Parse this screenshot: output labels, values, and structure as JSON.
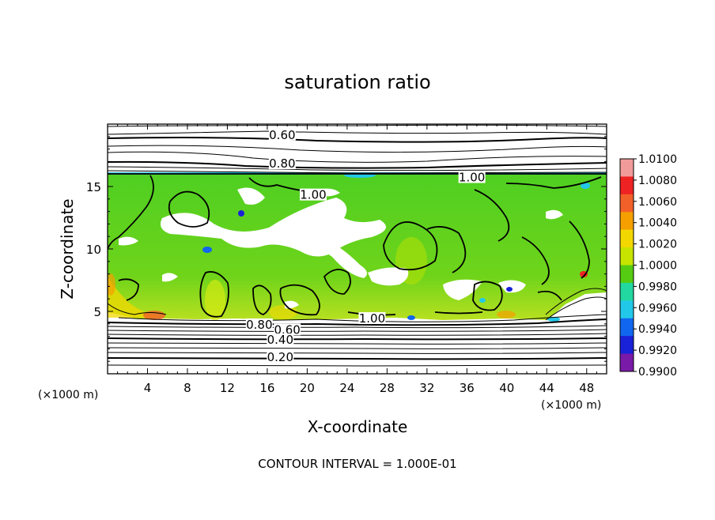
{
  "chart_data": {
    "type": "heatmap",
    "title": "saturation ratio",
    "xlabel": "X-coordinate",
    "ylabel": "Z-coordinate",
    "x_unit": "(×1000 m)",
    "z_unit": "(×1000 m)",
    "xlim": [
      0,
      50
    ],
    "ylim": [
      0,
      20
    ],
    "x_ticks": [
      4,
      8,
      12,
      16,
      20,
      24,
      28,
      32,
      36,
      40,
      44,
      48
    ],
    "y_ticks": [
      5,
      10,
      15
    ],
    "colorbar": {
      "min": 0.99,
      "max": 1.01,
      "tick_labels": [
        "1.0100",
        "1.0080",
        "1.0060",
        "1.0040",
        "1.0020",
        "1.0000",
        "0.9980",
        "0.9960",
        "0.9940",
        "0.9920",
        "0.9900"
      ],
      "colors": [
        "#f29b9b",
        "#ee2222",
        "#f2602a",
        "#f5a000",
        "#f2d800",
        "#c6e400",
        "#55cc11",
        "#22d8a0",
        "#22c8e8",
        "#1166ee",
        "#1a22d8",
        "#7a1aa8"
      ]
    },
    "contour_labels": [
      {
        "text": "0.60",
        "x": 17.5,
        "z": 19.0
      },
      {
        "text": "0.80",
        "x": 17.5,
        "z": 16.7
      },
      {
        "text": "1.00",
        "x": 36.5,
        "z": 15.6
      },
      {
        "text": "1.00",
        "x": 20.6,
        "z": 14.2
      },
      {
        "text": "1.00",
        "x": 26.5,
        "z": 4.3
      },
      {
        "text": "0.80",
        "x": 15.2,
        "z": 3.8
      },
      {
        "text": "0.60",
        "x": 18.0,
        "z": 3.4
      },
      {
        "text": "0.40",
        "x": 17.3,
        "z": 2.6
      },
      {
        "text": "0.20",
        "x": 17.3,
        "z": 1.2
      }
    ],
    "annotation": "CONTOUR INTERVAL = 1.000E-01"
  }
}
